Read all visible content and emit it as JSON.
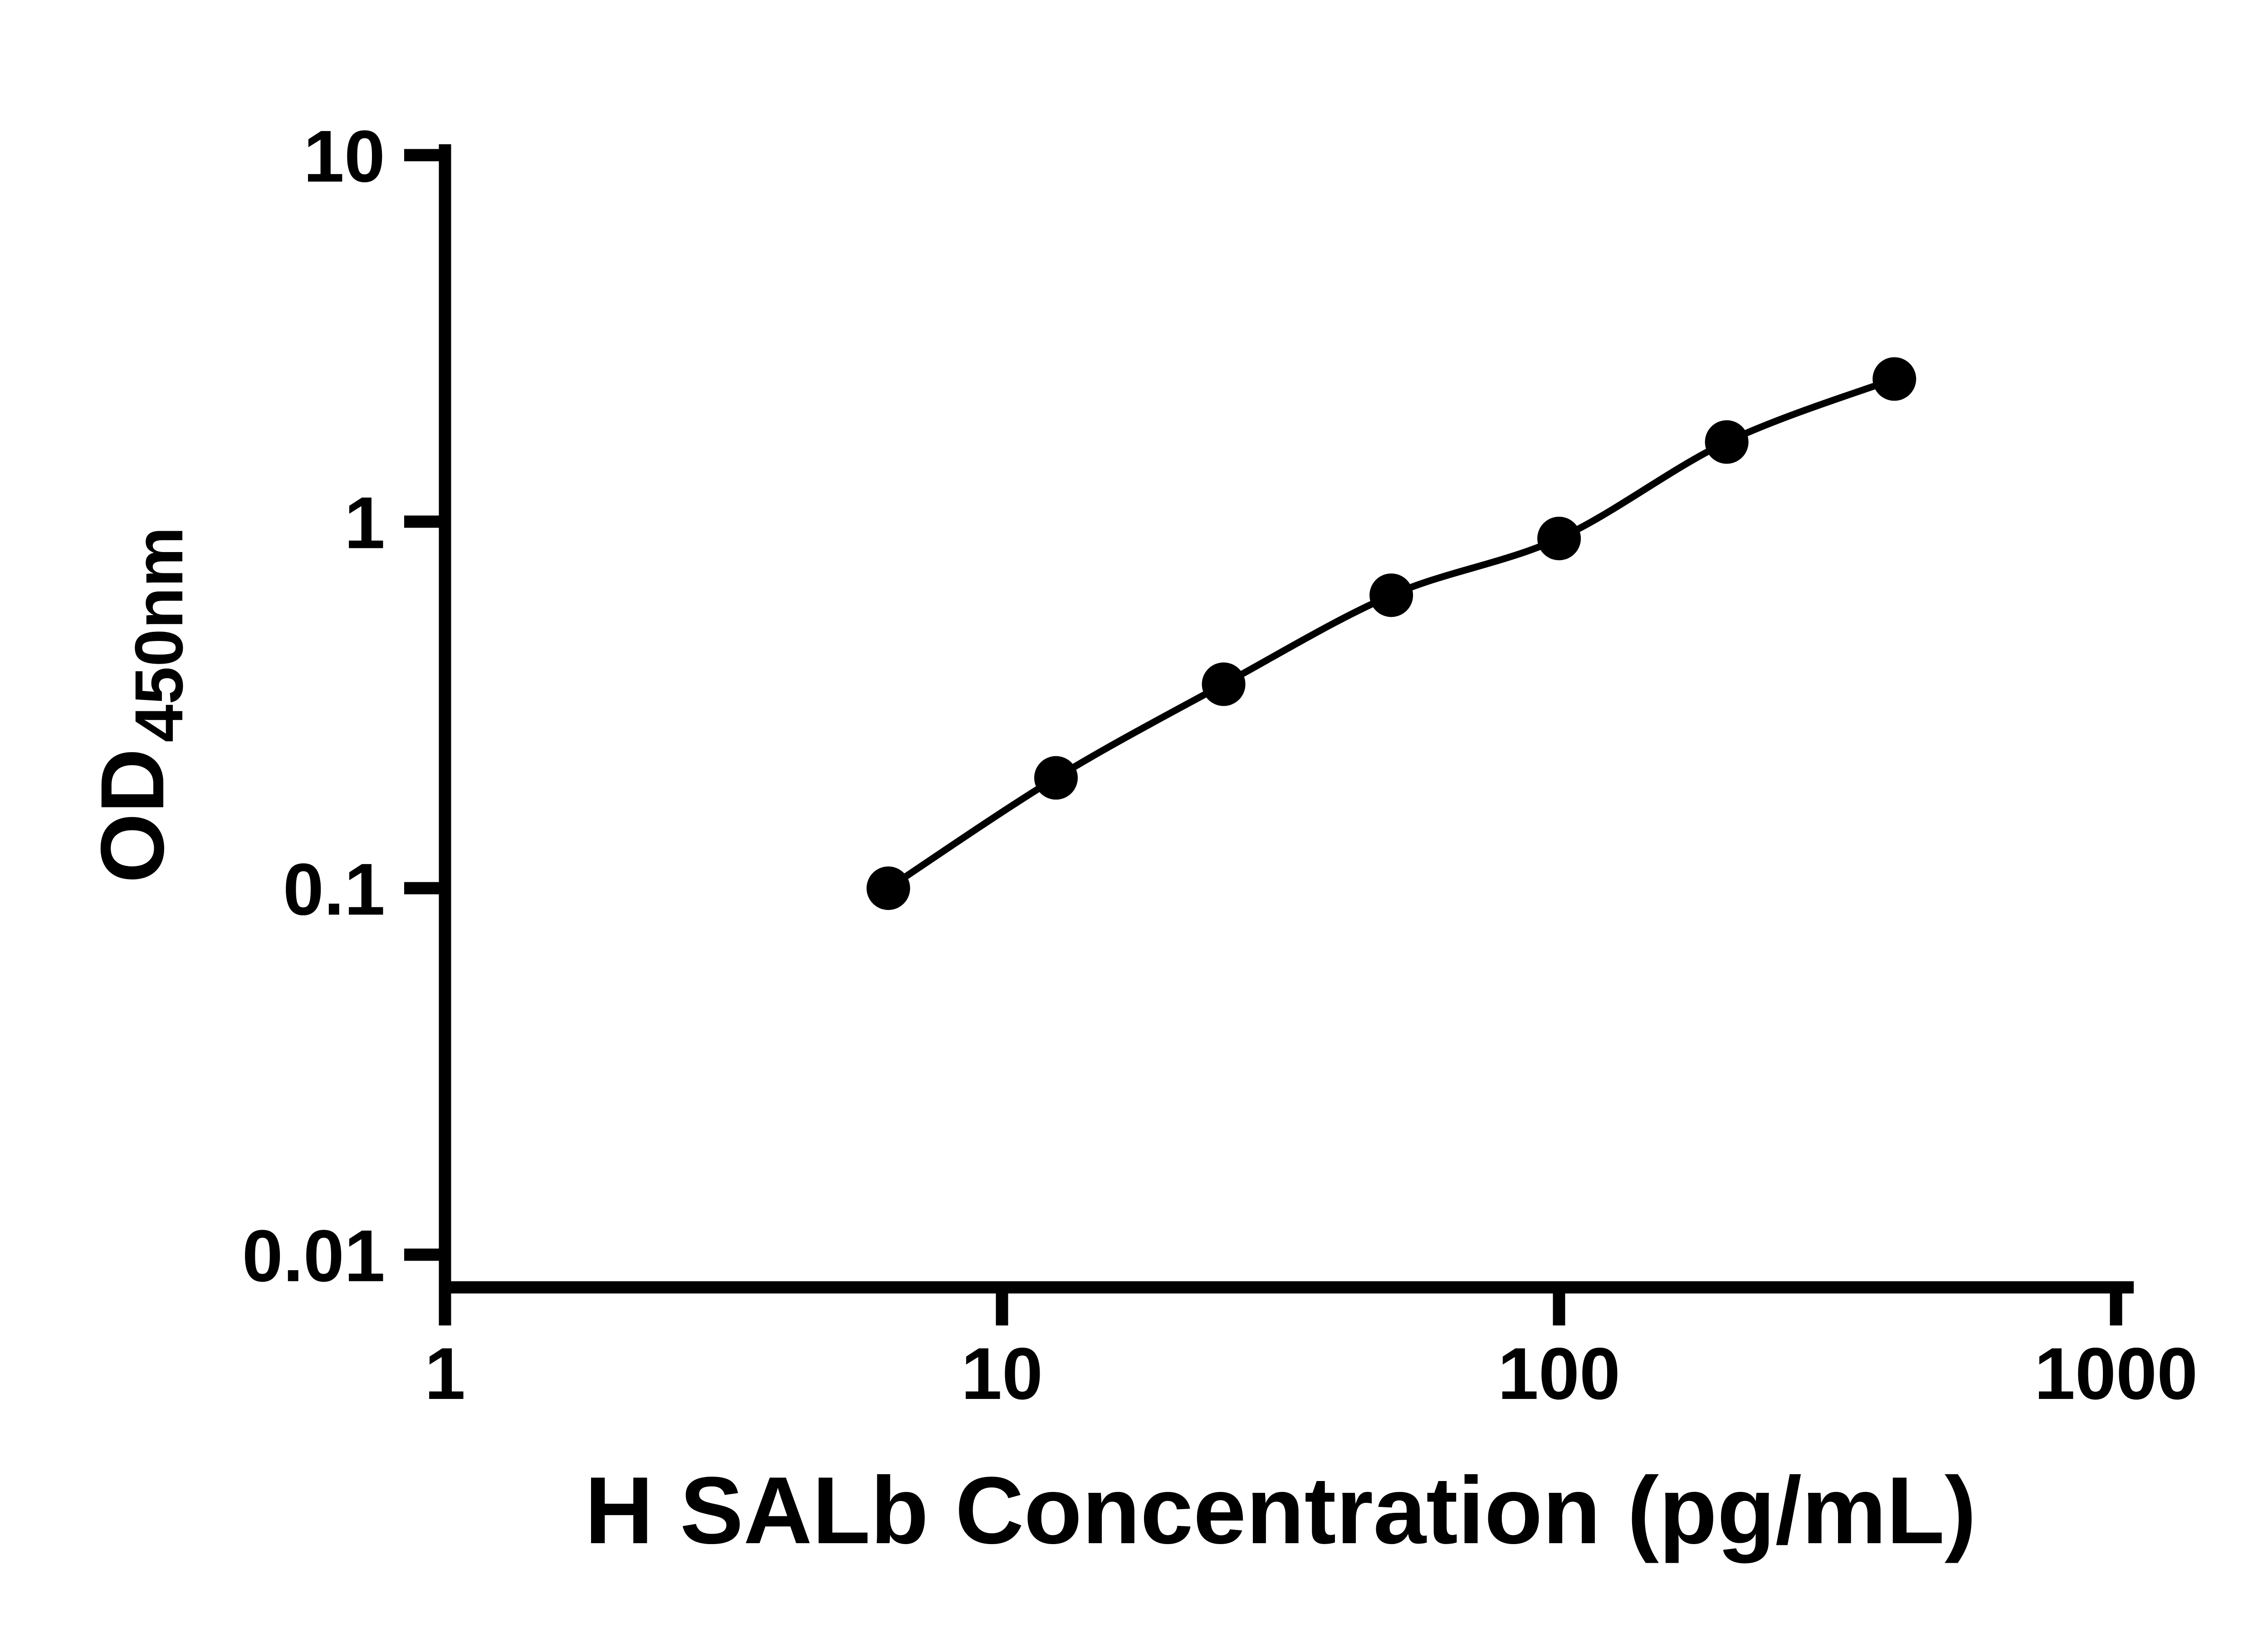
{
  "chart_data": {
    "type": "scatter",
    "title": "",
    "xlabel": "H SALb Concentration (pg/mL)",
    "ylabel_main": "OD",
    "ylabel_sub": "450nm",
    "x_scale": "log",
    "y_scale": "log",
    "xlim": [
      1,
      1000
    ],
    "ylim": [
      0.01,
      10
    ],
    "x_ticks": [
      1,
      10,
      100,
      1000
    ],
    "y_ticks": [
      0.01,
      0.1,
      1,
      10
    ],
    "grid": false,
    "legend": "none",
    "marker": "filled-circle",
    "series": [
      {
        "x": [
          6.25,
          12.5,
          25,
          50,
          100,
          200,
          400
        ],
        "y": [
          0.1,
          0.2,
          0.36,
          0.63,
          0.9,
          1.65,
          2.45
        ]
      }
    ]
  },
  "colors": {
    "axis": "#000000",
    "line": "#000000",
    "marker": "#000000",
    "background": "#ffffff"
  }
}
